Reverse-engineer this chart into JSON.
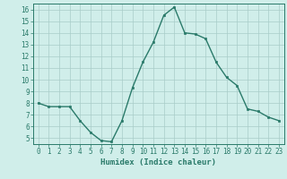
{
  "x": [
    0,
    1,
    2,
    3,
    4,
    5,
    6,
    7,
    8,
    9,
    10,
    11,
    12,
    13,
    14,
    15,
    16,
    17,
    18,
    19,
    20,
    21,
    22,
    23
  ],
  "y": [
    8,
    7.7,
    7.7,
    7.7,
    6.5,
    5.5,
    4.8,
    4.7,
    6.5,
    9.3,
    11.5,
    13.2,
    15.5,
    16.2,
    14.0,
    13.9,
    13.5,
    11.5,
    10.2,
    9.5,
    7.5,
    7.3,
    6.8,
    6.5
  ],
  "line_color": "#2a7a6a",
  "marker": "s",
  "markersize": 1.8,
  "linewidth": 1.0,
  "xlabel": "Humidex (Indice chaleur)",
  "xlim": [
    -0.5,
    23.5
  ],
  "ylim": [
    4.5,
    16.5
  ],
  "xticks": [
    0,
    1,
    2,
    3,
    4,
    5,
    6,
    7,
    8,
    9,
    10,
    11,
    12,
    13,
    14,
    15,
    16,
    17,
    18,
    19,
    20,
    21,
    22,
    23
  ],
  "yticks": [
    5,
    6,
    7,
    8,
    9,
    10,
    11,
    12,
    13,
    14,
    15,
    16
  ],
  "bg_color": "#d0eeea",
  "grid_color": "#a8ccc8",
  "label_fontsize": 6.5,
  "tick_fontsize": 5.5
}
